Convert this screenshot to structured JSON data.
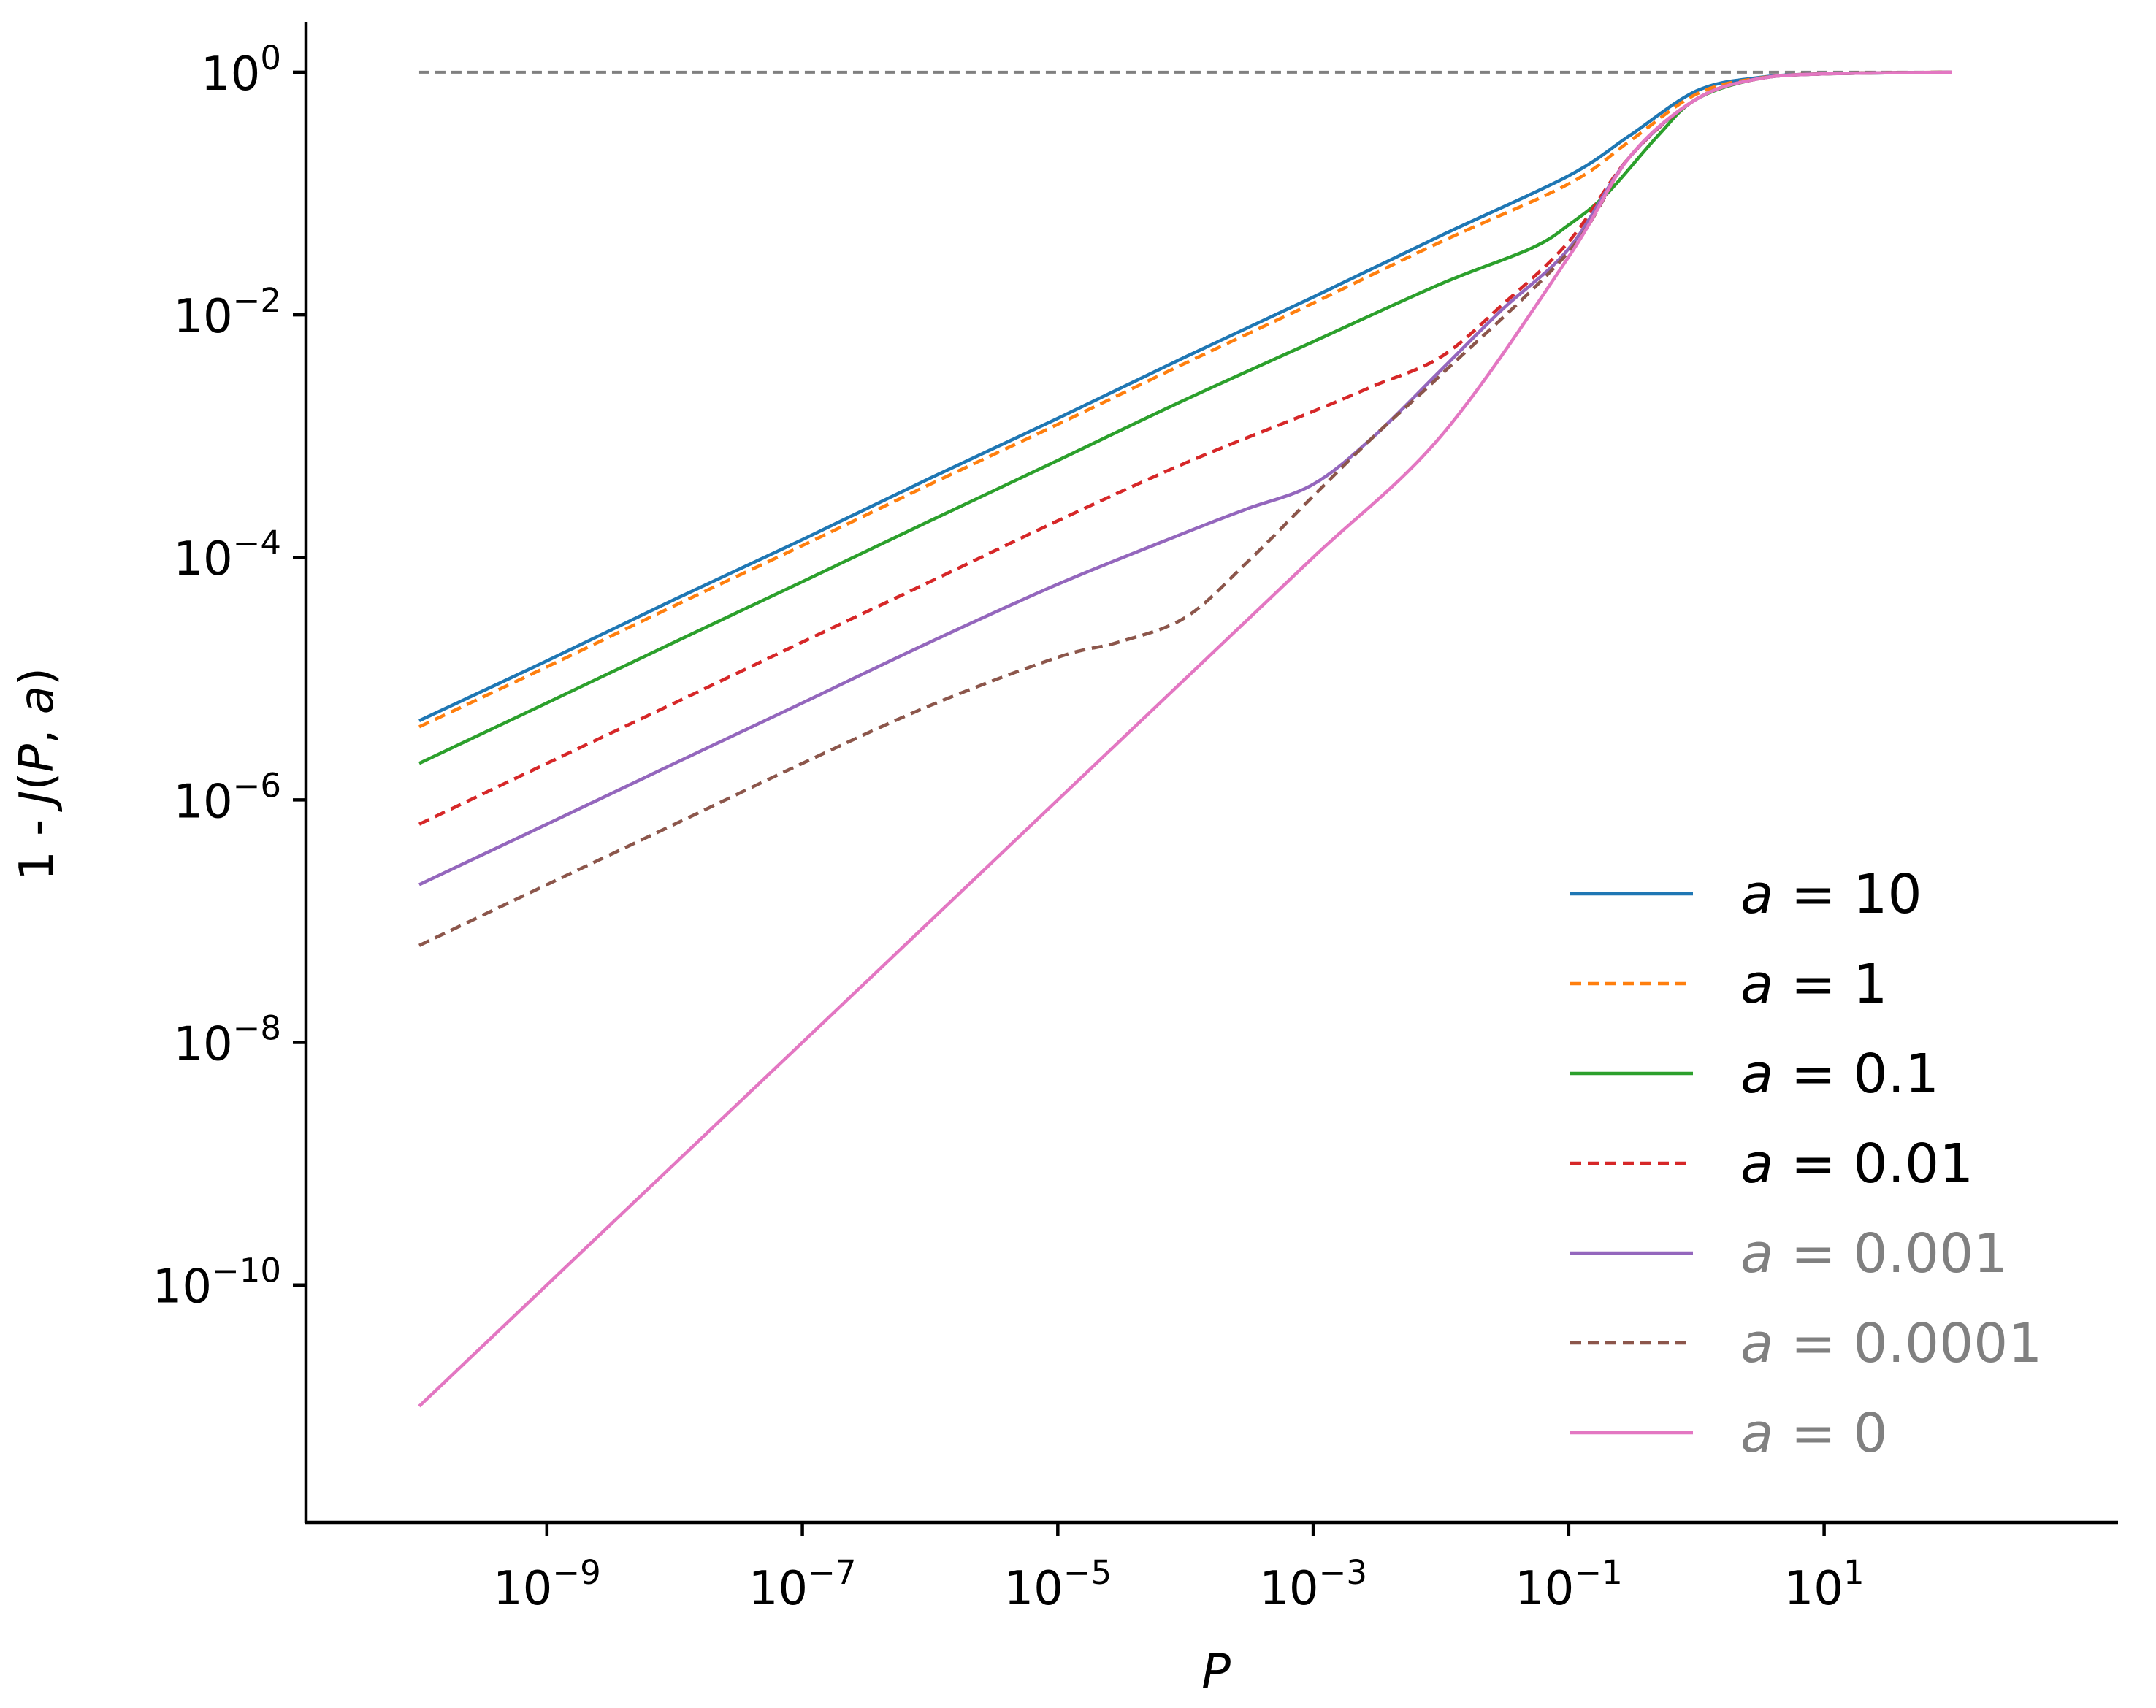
{
  "chart_data": {
    "type": "line",
    "xlabel": "P",
    "ylabel": "1 - J(P, a)",
    "xscale": "log",
    "yscale": "log",
    "xlim": [
      1.3e-11,
      2000
    ],
    "ylim": [
      1.1e-12,
      2.6
    ],
    "xticks": [
      {
        "value": 1e-09,
        "base": "10",
        "exp": "−9"
      },
      {
        "value": 1e-07,
        "base": "10",
        "exp": "−7"
      },
      {
        "value": 1e-05,
        "base": "10",
        "exp": "−5"
      },
      {
        "value": 0.001,
        "base": "10",
        "exp": "−3"
      },
      {
        "value": 0.1,
        "base": "10",
        "exp": "−1"
      },
      {
        "value": 10,
        "base": "10",
        "exp": "1"
      }
    ],
    "yticks": [
      {
        "value": 1,
        "base": "10",
        "exp": "0"
      },
      {
        "value": 0.01,
        "base": "10",
        "exp": "−2"
      },
      {
        "value": 0.0001,
        "base": "10",
        "exp": "−4"
      },
      {
        "value": 1e-06,
        "base": "10",
        "exp": "−6"
      },
      {
        "value": 1e-08,
        "base": "10",
        "exp": "−8"
      },
      {
        "value": 1e-10,
        "base": "10",
        "exp": "−10"
      }
    ],
    "grid": false,
    "legend_position": "lower-right",
    "reference_line": {
      "y": 1,
      "x_from": 1e-10,
      "x_to": 100,
      "color": "#808080",
      "dash": true
    },
    "series": [
      {
        "name": "a = 10",
        "color": "#1f77b4",
        "dash": false,
        "label_color": "#000000",
        "x": [
          1e-10,
          1e-09,
          1e-08,
          1e-07,
          1e-06,
          1e-05,
          0.0001,
          0.001,
          0.01,
          0.1,
          0.3,
          1,
          3,
          10,
          100
        ],
        "y": [
          4.5e-06,
          1.4e-05,
          4.5e-05,
          0.00014,
          0.00045,
          0.0014,
          0.0045,
          0.014,
          0.045,
          0.14,
          0.3,
          0.7,
          0.9,
          0.97,
          1.0
        ]
      },
      {
        "name": "a = 1",
        "color": "#ff7f0e",
        "dash": true,
        "label_color": "#000000",
        "x": [
          1e-10,
          1e-09,
          1e-08,
          1e-07,
          1e-06,
          1e-05,
          0.0001,
          0.001,
          0.01,
          0.1,
          0.3,
          1,
          3,
          10,
          100
        ],
        "y": [
          4e-06,
          1.25e-05,
          4e-05,
          0.000125,
          0.0004,
          0.00125,
          0.004,
          0.0125,
          0.04,
          0.12,
          0.27,
          0.66,
          0.89,
          0.97,
          1.0
        ]
      },
      {
        "name": "a = 0.1",
        "color": "#2ca02c",
        "dash": false,
        "label_color": "#000000",
        "x": [
          1e-10,
          1e-09,
          1e-08,
          1e-07,
          1e-06,
          1e-05,
          0.0001,
          0.001,
          0.01,
          0.05,
          0.1,
          0.2,
          0.5,
          1,
          3,
          10,
          100
        ],
        "y": [
          2e-06,
          6.3e-06,
          2e-05,
          6.3e-05,
          0.0002,
          0.00063,
          0.002,
          0.006,
          0.018,
          0.035,
          0.055,
          0.1,
          0.3,
          0.6,
          0.88,
          0.97,
          1.0
        ]
      },
      {
        "name": "a = 0.01",
        "color": "#d62728",
        "dash": true,
        "label_color": "#000000",
        "x": [
          1e-10,
          1e-09,
          1e-08,
          1e-07,
          1e-06,
          1e-05,
          0.0001,
          0.001,
          0.003,
          0.01,
          0.03,
          0.1,
          0.3,
          1,
          3,
          10,
          100
        ],
        "y": [
          6.3e-07,
          2e-06,
          6.3e-06,
          2e-05,
          6.3e-05,
          0.0002,
          0.0006,
          0.0016,
          0.0026,
          0.0045,
          0.012,
          0.04,
          0.2,
          0.6,
          0.88,
          0.97,
          1.0
        ]
      },
      {
        "name": "a = 0.001",
        "color": "#9467bd",
        "dash": false,
        "label_color": "#808080",
        "x": [
          1e-10,
          1e-09,
          1e-08,
          1e-07,
          1e-06,
          1e-05,
          0.0001,
          0.0003,
          0.001,
          0.003,
          0.01,
          0.03,
          0.1,
          0.3,
          1,
          3,
          10,
          100
        ],
        "y": [
          2e-07,
          6.3e-07,
          2e-06,
          6.3e-06,
          2e-05,
          6e-05,
          0.00016,
          0.00025,
          0.0004,
          0.001,
          0.0035,
          0.011,
          0.035,
          0.2,
          0.6,
          0.88,
          0.97,
          1.0
        ]
      },
      {
        "name": "a = 0.0001",
        "color": "#8c564b",
        "dash": true,
        "label_color": "#808080",
        "x": [
          1e-10,
          1e-09,
          1e-08,
          1e-07,
          1e-06,
          1e-05,
          3e-05,
          0.0001,
          0.0003,
          0.001,
          0.003,
          0.01,
          0.1,
          0.3,
          1,
          3,
          10,
          100
        ],
        "y": [
          6.3e-08,
          2e-07,
          6.3e-07,
          2e-06,
          6e-06,
          1.5e-05,
          2e-05,
          3.2e-05,
          9e-05,
          0.00032,
          0.001,
          0.0032,
          0.033,
          0.2,
          0.6,
          0.88,
          0.97,
          1.0
        ]
      },
      {
        "name": "a = 0",
        "color": "#e377c2",
        "dash": false,
        "label_color": "#808080",
        "x": [
          1e-10,
          1e-09,
          1e-08,
          1e-07,
          1e-06,
          1e-05,
          0.0001,
          0.001,
          0.01,
          0.1,
          0.3,
          1,
          3,
          10,
          100
        ],
        "y": [
          1e-11,
          1e-10,
          1e-09,
          1e-08,
          1e-07,
          1e-06,
          1e-05,
          0.0001,
          0.001,
          0.03,
          0.2,
          0.6,
          0.88,
          0.97,
          1.0
        ]
      }
    ]
  }
}
